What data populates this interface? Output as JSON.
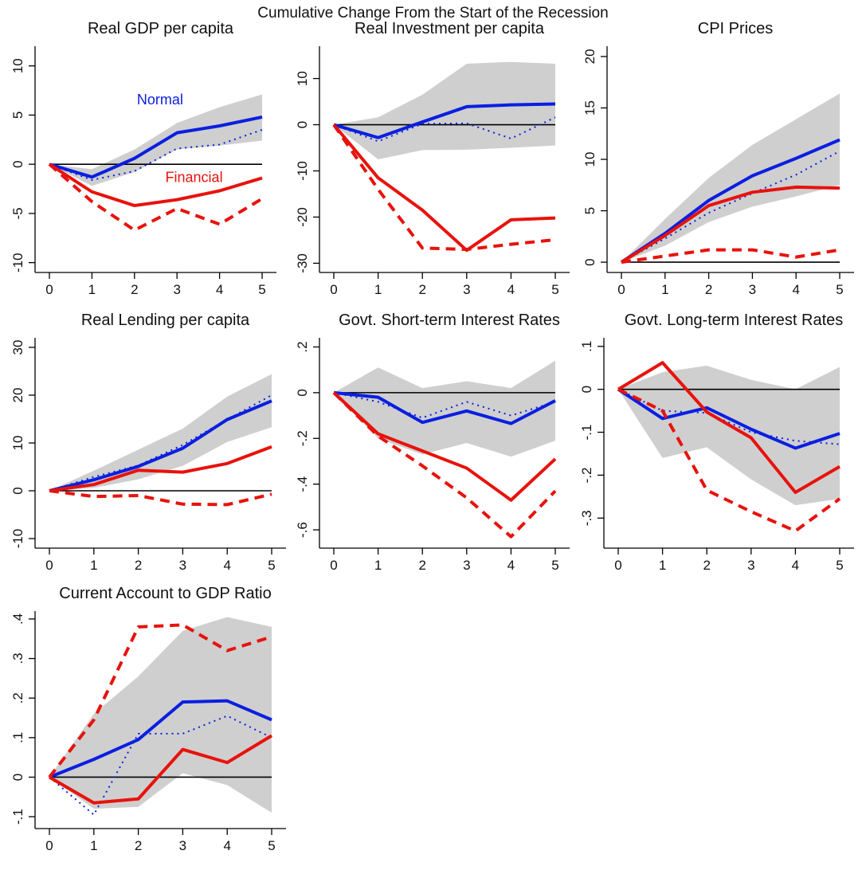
{
  "figure": {
    "title": "Cumulative Change From the Start of the Recession"
  },
  "colors": {
    "normal": "#0a1fe0",
    "financial": "#e8120c",
    "band": "#cfcfcf",
    "zero": "#000000"
  },
  "chart_data": [
    {
      "type": "line",
      "title": "Real GDP per capita",
      "x": [
        0,
        1,
        2,
        3,
        4,
        5
      ],
      "xticks": [
        "0",
        "1",
        "2",
        "3",
        "4",
        "5"
      ],
      "ylim": [
        -11,
        12
      ],
      "yticks": [
        -10,
        -5,
        0,
        5,
        10
      ],
      "ytick_labels": [
        "-10",
        "-5",
        "0",
        "5",
        "10"
      ],
      "band": {
        "lower": [
          0,
          -2.2,
          -0.8,
          1.5,
          1.9,
          2.4
        ],
        "upper": [
          0,
          -0.5,
          1.5,
          4.2,
          5.8,
          7.1
        ]
      },
      "series": [
        {
          "name": "Normal",
          "style": "solid",
          "color": "normal",
          "values": [
            0,
            -1.3,
            0.6,
            3.2,
            3.9,
            4.8
          ]
        },
        {
          "style": "dotted",
          "color": "normal",
          "values": [
            0,
            -1.6,
            -0.7,
            1.6,
            2.0,
            3.5
          ]
        },
        {
          "name": "Financial",
          "style": "solid",
          "color": "financial",
          "values": [
            0,
            -2.8,
            -4.2,
            -3.6,
            -2.7,
            -1.4
          ]
        },
        {
          "style": "dashed",
          "color": "financial",
          "values": [
            0,
            -3.8,
            -6.7,
            -4.5,
            -6.1,
            -3.5
          ]
        }
      ],
      "annotations": [
        {
          "text": "Normal",
          "x": 2.6,
          "y": 6.1,
          "color": "normal"
        },
        {
          "text": "Financial",
          "x": 3.4,
          "y": -1.8,
          "color": "financial"
        }
      ]
    },
    {
      "type": "line",
      "title": "Real Investment per capita",
      "x": [
        0,
        1,
        2,
        3,
        4,
        5
      ],
      "xticks": [
        "0",
        "1",
        "2",
        "3",
        "4",
        "5"
      ],
      "ylim": [
        -32,
        17
      ],
      "yticks": [
        -30,
        -20,
        -10,
        0,
        10
      ],
      "ytick_labels": [
        "-30",
        "-20",
        "-10",
        "0",
        "10"
      ],
      "band": {
        "lower": [
          0,
          -7.5,
          -5.5,
          -5.4,
          -5.0,
          -4.5
        ],
        "upper": [
          0,
          1.6,
          6.5,
          13.2,
          13.6,
          13.2
        ]
      },
      "series": [
        {
          "name": "Normal",
          "style": "solid",
          "color": "normal",
          "values": [
            0,
            -2.8,
            0.6,
            3.9,
            4.3,
            4.5
          ]
        },
        {
          "style": "dotted",
          "color": "normal",
          "values": [
            0,
            -3.6,
            0.2,
            0.3,
            -3.0,
            1.6
          ]
        },
        {
          "name": "Financial",
          "style": "solid",
          "color": "financial",
          "values": [
            0,
            -11.5,
            -18.5,
            -27.2,
            -20.6,
            -20.2
          ]
        },
        {
          "style": "dashed",
          "color": "financial",
          "values": [
            0,
            -14.0,
            -26.7,
            -27.0,
            -25.9,
            -24.9
          ]
        }
      ]
    },
    {
      "type": "line",
      "title": "CPI Prices",
      "x": [
        0,
        1,
        2,
        3,
        4,
        5
      ],
      "xticks": [
        "0",
        "1",
        "2",
        "3",
        "4",
        "5"
      ],
      "ylim": [
        -1,
        21
      ],
      "yticks": [
        0,
        5,
        10,
        15,
        20
      ],
      "ytick_labels": [
        "0",
        "5",
        "10",
        "15",
        "20"
      ],
      "band": {
        "lower": [
          0,
          1.6,
          3.9,
          5.4,
          6.4,
          7.5
        ],
        "upper": [
          0,
          4.2,
          8.2,
          11.4,
          13.9,
          16.4
        ]
      },
      "series": [
        {
          "name": "Normal",
          "style": "solid",
          "color": "normal",
          "values": [
            0,
            2.8,
            6.0,
            8.4,
            10.1,
            11.9
          ]
        },
        {
          "style": "dotted",
          "color": "normal",
          "values": [
            0,
            2.3,
            4.8,
            6.7,
            8.5,
            10.8
          ]
        },
        {
          "name": "Financial",
          "style": "solid",
          "color": "financial",
          "values": [
            0,
            2.6,
            5.5,
            6.8,
            7.3,
            7.2
          ]
        },
        {
          "style": "dashed",
          "color": "financial",
          "values": [
            0,
            0.6,
            1.2,
            1.2,
            0.5,
            1.2
          ]
        }
      ]
    },
    {
      "type": "line",
      "title": "Real Lending per capita",
      "x": [
        0,
        1,
        2,
        3,
        4,
        5
      ],
      "xticks": [
        "0",
        "1",
        "2",
        "3",
        "4",
        "5"
      ],
      "ylim": [
        -12,
        32
      ],
      "yticks": [
        -10,
        0,
        10,
        20,
        30
      ],
      "ytick_labels": [
        "-10",
        "0",
        "10",
        "20",
        "30"
      ],
      "band": {
        "lower": [
          0,
          0.6,
          2.4,
          5.2,
          10.2,
          13.3
        ],
        "upper": [
          0,
          4.2,
          8.6,
          13.0,
          19.7,
          24.4
        ]
      },
      "series": [
        {
          "name": "Normal",
          "style": "solid",
          "color": "normal",
          "values": [
            0,
            2.3,
            5.1,
            8.9,
            14.9,
            18.8
          ]
        },
        {
          "style": "dotted",
          "color": "normal",
          "values": [
            0,
            2.9,
            5.3,
            9.6,
            14.9,
            20.0
          ]
        },
        {
          "name": "Financial",
          "style": "solid",
          "color": "financial",
          "values": [
            0,
            1.3,
            4.3,
            3.9,
            5.7,
            9.2
          ]
        },
        {
          "style": "dashed",
          "color": "financial",
          "values": [
            0,
            -1.2,
            -1.0,
            -2.8,
            -2.9,
            -0.7
          ]
        }
      ]
    },
    {
      "type": "line",
      "title": "Govt. Short-term Interest Rates",
      "x": [
        0,
        1,
        2,
        3,
        4,
        5
      ],
      "xticks": [
        "0",
        "1",
        "2",
        "3",
        "4",
        "5"
      ],
      "ylim": [
        -0.68,
        0.24
      ],
      "yticks": [
        -0.6,
        -0.4,
        -0.2,
        0,
        0.2
      ],
      "ytick_labels": [
        "-.6",
        "-.4",
        "-.2",
        "0",
        ".2"
      ],
      "band": {
        "lower": [
          0,
          -0.2,
          -0.27,
          -0.22,
          -0.28,
          -0.21
        ],
        "upper": [
          0,
          0.11,
          0.02,
          0.05,
          0.02,
          0.14
        ]
      },
      "series": [
        {
          "name": "Normal",
          "style": "solid",
          "color": "normal",
          "values": [
            0,
            -0.02,
            -0.13,
            -0.08,
            -0.135,
            -0.035
          ]
        },
        {
          "style": "dotted",
          "color": "normal",
          "values": [
            0,
            -0.04,
            -0.11,
            -0.04,
            -0.1,
            -0.04
          ]
        },
        {
          "name": "Financial",
          "style": "solid",
          "color": "financial",
          "values": [
            0,
            -0.18,
            -0.255,
            -0.33,
            -0.47,
            -0.29
          ]
        },
        {
          "style": "dashed",
          "color": "financial",
          "values": [
            0,
            -0.19,
            -0.32,
            -0.46,
            -0.63,
            -0.43
          ]
        }
      ]
    },
    {
      "type": "line",
      "title": "Govt. Long-term Interest Rates",
      "x": [
        0,
        1,
        2,
        3,
        4,
        5
      ],
      "xticks": [
        "0",
        "1",
        "2",
        "3",
        "4",
        "5"
      ],
      "ylim": [
        -0.37,
        0.12
      ],
      "yticks": [
        -0.3,
        -0.2,
        -0.1,
        0,
        0.1
      ],
      "ytick_labels": [
        "-.3",
        "-.2",
        "-.1",
        "0",
        ".1"
      ],
      "band": {
        "lower": [
          0,
          -0.16,
          -0.135,
          -0.21,
          -0.27,
          -0.255
        ],
        "upper": [
          0,
          0.04,
          0.055,
          0.022,
          0.0,
          0.052
        ]
      },
      "series": [
        {
          "name": "Normal",
          "style": "solid",
          "color": "normal",
          "values": [
            0,
            -0.068,
            -0.043,
            -0.093,
            -0.137,
            -0.103
          ]
        },
        {
          "style": "dotted",
          "color": "normal",
          "values": [
            0,
            -0.05,
            -0.055,
            -0.1,
            -0.12,
            -0.128
          ]
        },
        {
          "name": "Financial",
          "style": "solid",
          "color": "financial",
          "values": [
            0,
            0.062,
            -0.053,
            -0.113,
            -0.24,
            -0.18
          ]
        },
        {
          "style": "dashed",
          "color": "financial",
          "values": [
            0,
            -0.05,
            -0.235,
            -0.285,
            -0.33,
            -0.255
          ]
        }
      ]
    },
    {
      "type": "line",
      "title": "Current Account to GDP Ratio",
      "x": [
        0,
        1,
        2,
        3,
        4,
        5
      ],
      "xticks": [
        "0",
        "1",
        "2",
        "3",
        "4",
        "5"
      ],
      "ylim": [
        -0.13,
        0.42
      ],
      "yticks": [
        -0.1,
        0,
        0.1,
        0.2,
        0.3,
        0.4
      ],
      "ytick_labels": [
        "-.1",
        "0",
        ".1",
        ".2",
        ".3",
        ".4"
      ],
      "band": {
        "lower": [
          0,
          -0.08,
          -0.075,
          0.01,
          -0.02,
          -0.09
        ],
        "upper": [
          0,
          0.16,
          0.255,
          0.37,
          0.405,
          0.38
        ]
      },
      "series": [
        {
          "name": "Normal",
          "style": "solid",
          "color": "normal",
          "values": [
            0,
            0.045,
            0.095,
            0.19,
            0.193,
            0.145
          ]
        },
        {
          "style": "dotted",
          "color": "normal",
          "values": [
            0,
            -0.095,
            0.11,
            0.11,
            0.155,
            0.1
          ]
        },
        {
          "name": "Financial",
          "style": "solid",
          "color": "financial",
          "values": [
            0,
            -0.065,
            -0.055,
            0.07,
            0.037,
            0.105
          ]
        },
        {
          "style": "dashed",
          "color": "financial",
          "values": [
            0,
            0.145,
            0.38,
            0.385,
            0.32,
            0.355
          ]
        }
      ]
    }
  ]
}
